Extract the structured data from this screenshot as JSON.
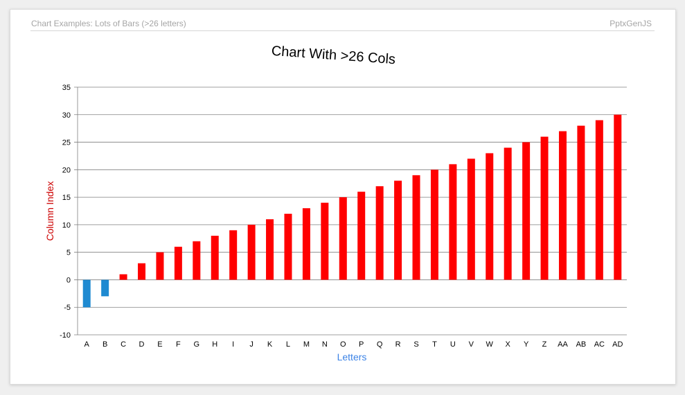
{
  "header": {
    "left_text": "Chart Examples: Lots of Bars (>26 letters)",
    "right_text": "PptxGenJS"
  },
  "colors": {
    "positive": "#ff0000",
    "negative": "#1f8ad1",
    "ylabel": "#cc0000",
    "xlabel": "#3c83e6",
    "grid": "#7f7f7f"
  },
  "chart_data": {
    "type": "bar",
    "title": "Chart With >26 Cols",
    "xlabel": "Letters",
    "ylabel": "Column Index",
    "ylim": [
      -10,
      35
    ],
    "ytick_step": 5,
    "grid": true,
    "categories": [
      "A",
      "B",
      "C",
      "D",
      "E",
      "F",
      "G",
      "H",
      "I",
      "J",
      "K",
      "L",
      "M",
      "N",
      "O",
      "P",
      "Q",
      "R",
      "S",
      "T",
      "U",
      "V",
      "W",
      "X",
      "Y",
      "Z",
      "AA",
      "AB",
      "AC",
      "AD"
    ],
    "values": [
      -5,
      -3,
      1,
      3,
      5,
      6,
      7,
      8,
      9,
      10,
      11,
      12,
      13,
      14,
      15,
      16,
      17,
      18,
      19,
      20,
      21,
      22,
      23,
      24,
      25,
      26,
      27,
      28,
      29,
      30
    ]
  }
}
